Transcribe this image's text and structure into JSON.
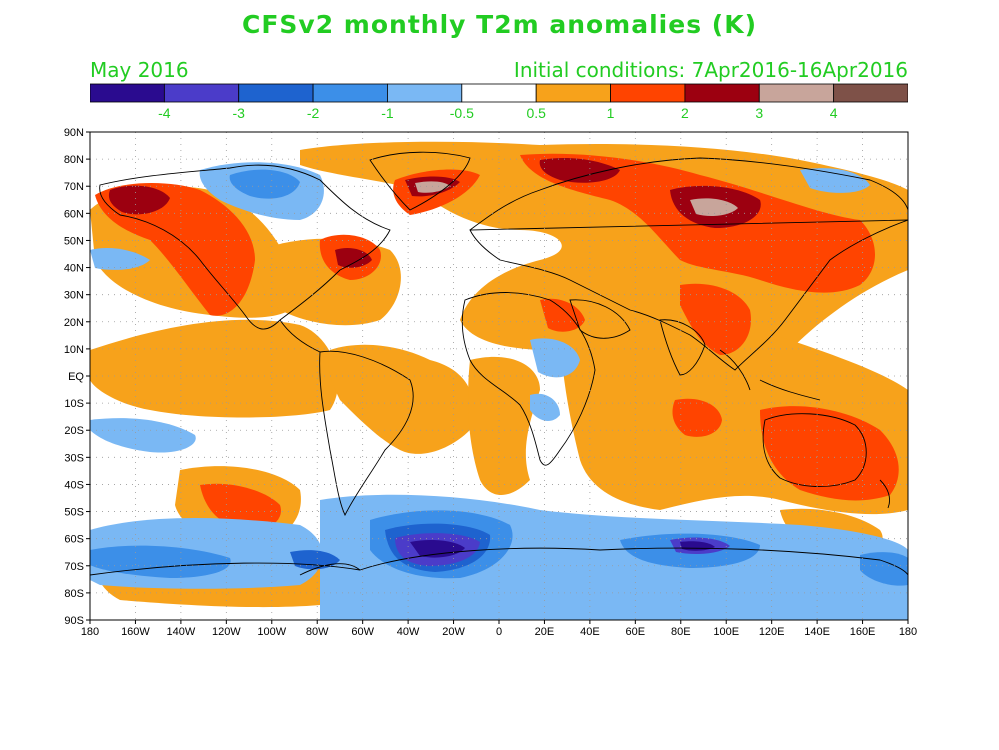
{
  "header": {
    "title": "CFSv2 monthly T2m anomalies (K)",
    "period": "May 2016",
    "initial_conditions": "Initial conditions: 7Apr2016-16Apr2016"
  },
  "colorbar": {
    "boxes": [
      "#2a0b8f",
      "#4b3cc9",
      "#1e63cf",
      "#3c8fe8",
      "#7ab8f4",
      "#ffffff",
      "#f7a21b",
      "#ff4400",
      "#9c0010",
      "#c8a59b",
      "#7e5148"
    ],
    "labels": [
      "-4",
      "-3",
      "-2",
      "-1",
      "-0.5",
      "0.5",
      "1",
      "2",
      "3",
      "4"
    ],
    "label_color": "#22cc22"
  },
  "map": {
    "lat_labels": [
      "90N",
      "80N",
      "70N",
      "60N",
      "50N",
      "40N",
      "30N",
      "20N",
      "10N",
      "EQ",
      "10S",
      "20S",
      "30S",
      "40S",
      "50S",
      "60S",
      "70S",
      "80S",
      "90S"
    ],
    "lon_labels": [
      "180",
      "160W",
      "140W",
      "120W",
      "100W",
      "80W",
      "60W",
      "40W",
      "20W",
      "0",
      "20E",
      "40E",
      "60E",
      "80E",
      "100E",
      "120E",
      "140E",
      "160E",
      "180"
    ]
  }
}
